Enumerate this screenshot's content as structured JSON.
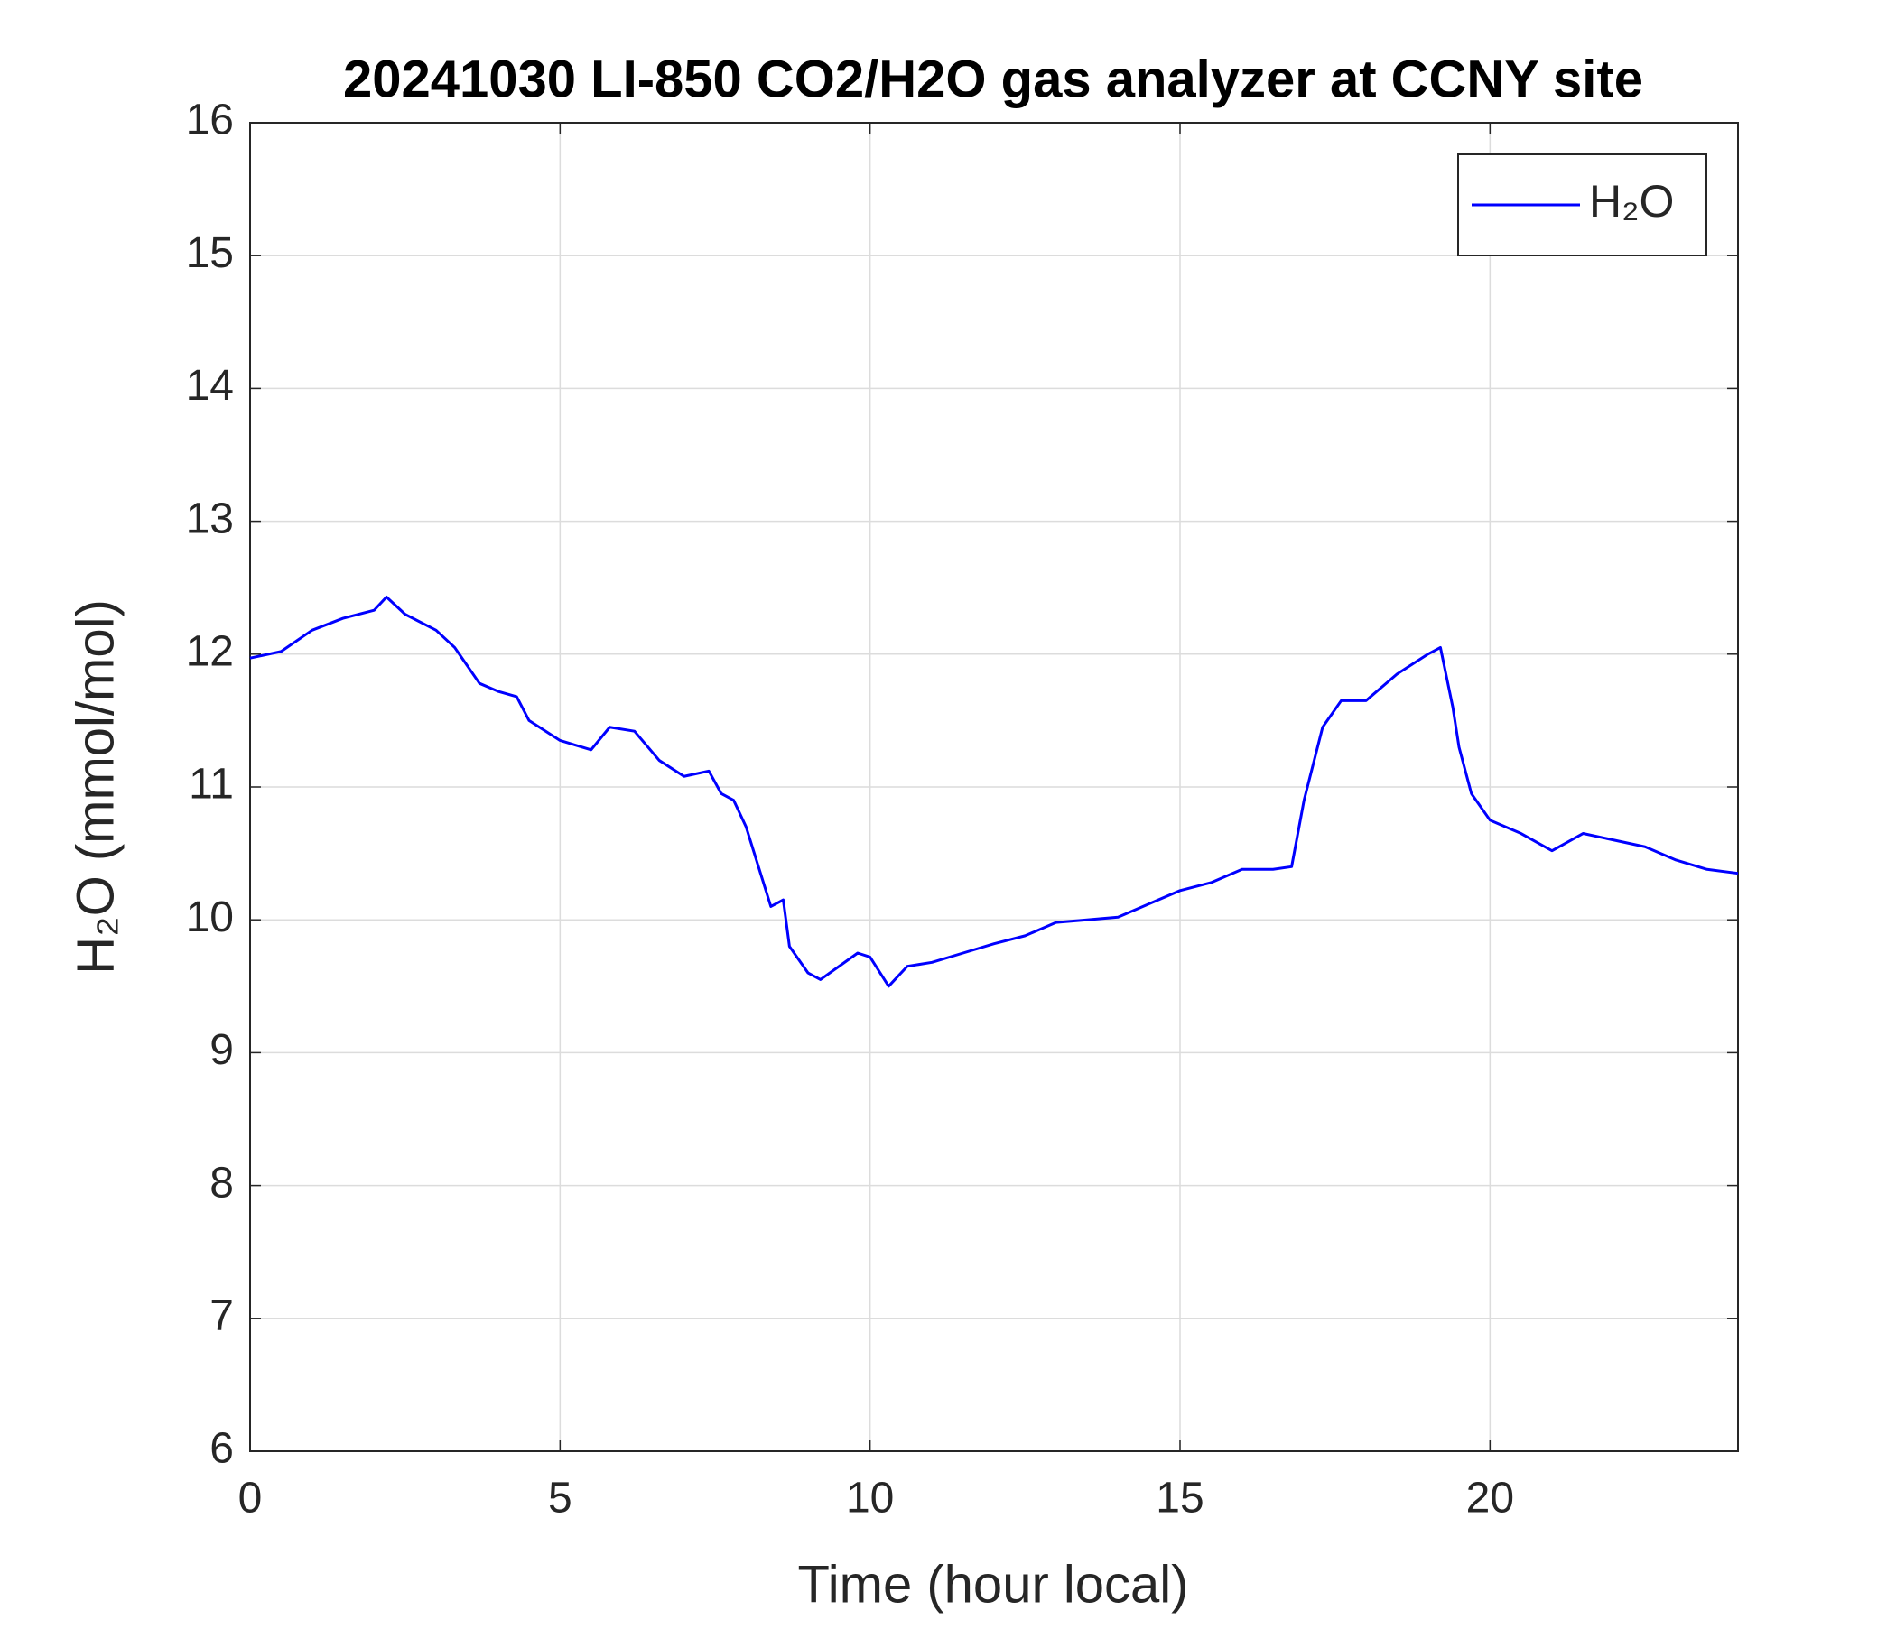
{
  "chart_data": {
    "type": "line",
    "title": "20241030 LI-850 CO2/H2O gas analyzer at CCNY site",
    "x_label": "Time (hour local)",
    "y_label": "H₂O (mmol/mol)",
    "x": [
      0,
      0.5,
      1,
      1.5,
      2,
      2.2,
      2.5,
      3,
      3.3,
      3.7,
      4,
      4.3,
      4.5,
      5,
      5.5,
      5.8,
      6.2,
      6.6,
      7,
      7.4,
      7.6,
      7.8,
      8,
      8.2,
      8.4,
      8.6,
      8.7,
      9,
      9.2,
      9.5,
      9.8,
      10,
      10.3,
      10.6,
      11,
      11.5,
      12,
      12.5,
      13,
      13.5,
      14,
      14.5,
      15,
      15.5,
      16,
      16.5,
      16.8,
      17,
      17.3,
      17.6,
      18,
      18.5,
      19,
      19.2,
      19.4,
      19.5,
      19.7,
      20,
      20.5,
      21,
      21.5,
      22,
      22.5,
      23,
      23.5,
      24
    ],
    "series": [
      {
        "name": "H₂O",
        "color": "#0000ff",
        "values": [
          11.97,
          12.02,
          12.18,
          12.27,
          12.33,
          12.43,
          12.3,
          12.18,
          12.05,
          11.78,
          11.72,
          11.68,
          11.5,
          11.35,
          11.28,
          11.45,
          11.42,
          11.2,
          11.08,
          11.12,
          10.95,
          10.9,
          10.7,
          10.4,
          10.1,
          10.15,
          9.8,
          9.6,
          9.55,
          9.65,
          9.75,
          9.72,
          9.5,
          9.65,
          9.68,
          9.75,
          9.82,
          9.88,
          9.98,
          10.0,
          10.02,
          10.12,
          10.22,
          10.28,
          10.38,
          10.38,
          10.4,
          10.9,
          11.45,
          11.65,
          11.65,
          11.85,
          12.0,
          12.05,
          11.6,
          11.3,
          10.95,
          10.75,
          10.65,
          10.52,
          10.65,
          10.6,
          10.55,
          10.45,
          10.38,
          10.35
        ]
      }
    ],
    "xlim": [
      0,
      24
    ],
    "xticks": [
      0,
      5,
      10,
      15,
      20
    ],
    "ylim": [
      6,
      16
    ],
    "yticks": [
      6,
      7,
      8,
      9,
      10,
      11,
      12,
      13,
      14,
      15,
      16
    ],
    "grid": true,
    "legend": "upper right"
  }
}
